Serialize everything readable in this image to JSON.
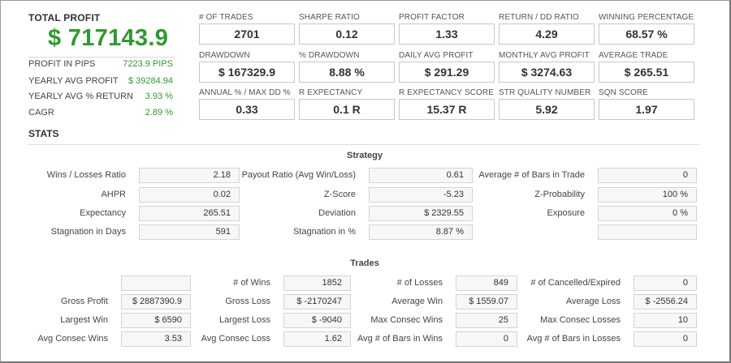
{
  "summary": {
    "title": "TOTAL PROFIT",
    "value": "$ 717143.9",
    "rows": [
      {
        "label": "PROFIT IN PIPS",
        "value": "7223.9 PIPS"
      },
      {
        "label": "YEARLY AVG PROFIT",
        "value": "$ 39284.94"
      },
      {
        "label": "YEARLY AVG % RETURN",
        "value": "3.93 %"
      },
      {
        "label": "CAGR",
        "value": "2.89 %"
      }
    ]
  },
  "tiles": [
    {
      "label": "# OF TRADES",
      "value": "2701"
    },
    {
      "label": "SHARPE RATIO",
      "value": "0.12"
    },
    {
      "label": "PROFIT FACTOR",
      "value": "1.33"
    },
    {
      "label": "RETURN / DD RATIO",
      "value": "4.29"
    },
    {
      "label": "WINNING PERCENTAGE",
      "value": "68.57 %"
    },
    {
      "label": "DRAWDOWN",
      "value": "$ 167329.9"
    },
    {
      "label": "% DRAWDOWN",
      "value": "8.88 %"
    },
    {
      "label": "DAILY AVG PROFIT",
      "value": "$ 291.29"
    },
    {
      "label": "MONTHLY AVG PROFIT",
      "value": "$ 3274.63"
    },
    {
      "label": "AVERAGE TRADE",
      "value": "$ 265.51"
    },
    {
      "label": "ANNUAL % / MAX DD %",
      "value": "0.33"
    },
    {
      "label": "R EXPECTANCY",
      "value": "0.1 R"
    },
    {
      "label": "R EXPECTANCY SCORE",
      "value": "15.37 R"
    },
    {
      "label": "STR QUALITY NUMBER",
      "value": "5.92"
    },
    {
      "label": "SQN SCORE",
      "value": "1.97"
    }
  ],
  "stats": {
    "title": "STATS",
    "strategy": {
      "title": "Strategy",
      "rows": [
        [
          {
            "label": "Wins / Losses Ratio",
            "value": "2.18"
          },
          {
            "label": "Payout Ratio (Avg Win/Loss)",
            "value": "0.61"
          },
          {
            "label": "Average # of Bars in Trade",
            "value": "0"
          }
        ],
        [
          {
            "label": "AHPR",
            "value": "0.02"
          },
          {
            "label": "Z-Score",
            "value": "-5.23"
          },
          {
            "label": "Z-Probability",
            "value": "100 %"
          }
        ],
        [
          {
            "label": "Expectancy",
            "value": "265.51"
          },
          {
            "label": "Deviation",
            "value": "$ 2329.55"
          },
          {
            "label": "Exposure",
            "value": "0 %"
          }
        ],
        [
          {
            "label": "Stagnation in Days",
            "value": "591"
          },
          {
            "label": "Stagnation in %",
            "value": "8.87 %"
          },
          {
            "label": "",
            "value": ""
          }
        ]
      ]
    },
    "trades": {
      "title": "Trades",
      "rows": [
        [
          {
            "label": "",
            "value": ""
          },
          {
            "label": "# of Wins",
            "value": "1852"
          },
          {
            "label": "# of Losses",
            "value": "849"
          },
          {
            "label": "# of Cancelled/Expired",
            "value": "0"
          }
        ],
        [
          {
            "label": "Gross Profit",
            "value": "$ 2887390.9"
          },
          {
            "label": "Gross Loss",
            "value": "$ -2170247"
          },
          {
            "label": "Average Win",
            "value": "$ 1559.07"
          },
          {
            "label": "Average Loss",
            "value": "$ -2556.24"
          }
        ],
        [
          {
            "label": "Largest Win",
            "value": "$ 6590"
          },
          {
            "label": "Largest Loss",
            "value": "$ -9040"
          },
          {
            "label": "Max Consec Wins",
            "value": "25"
          },
          {
            "label": "Max Consec Losses",
            "value": "10"
          }
        ],
        [
          {
            "label": "Avg Consec Wins",
            "value": "3.53"
          },
          {
            "label": "Avg Consec Loss",
            "value": "1.62"
          },
          {
            "label": "Avg # of Bars in Wins",
            "value": "0"
          },
          {
            "label": "Avg # of Bars in Losses",
            "value": "0"
          }
        ]
      ]
    }
  }
}
